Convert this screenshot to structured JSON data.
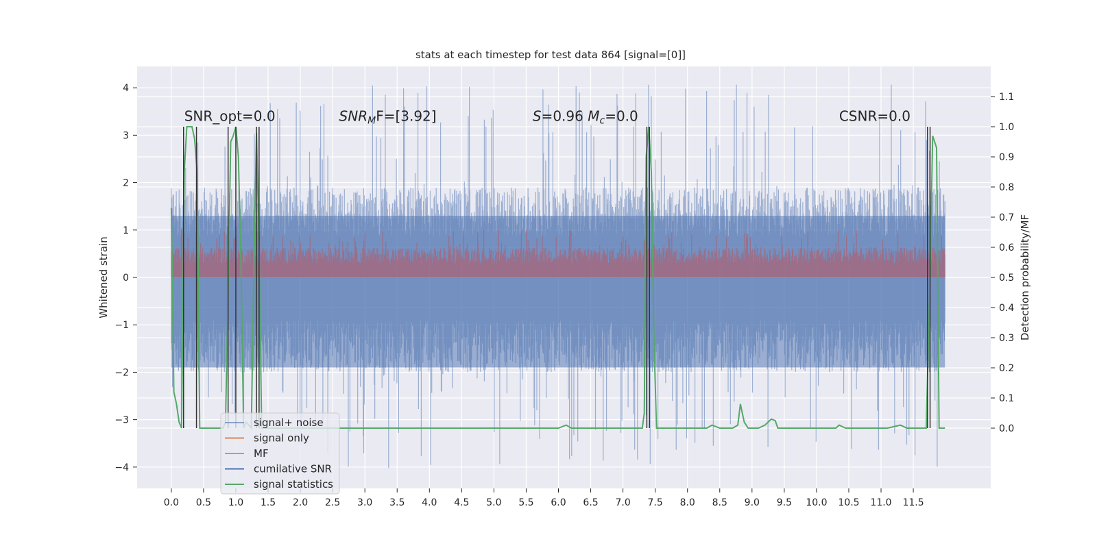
{
  "chart_data": {
    "type": "line",
    "title": "stats at each timestep for test data 864 [signal=[0]]",
    "xlabel": "",
    "ylabel": "Whitened strain",
    "y2label": "Detection probability/MF",
    "xlim": [
      -0.53,
      12.7
    ],
    "ylim": [
      -4.45,
      4.45
    ],
    "y2lim": [
      -0.2,
      1.2
    ],
    "xticks": [
      0.0,
      0.5,
      1.0,
      1.5,
      2.0,
      2.5,
      3.0,
      3.5,
      4.0,
      4.5,
      5.0,
      5.5,
      6.0,
      6.5,
      7.0,
      7.5,
      8.0,
      8.5,
      9.0,
      9.5,
      10.0,
      10.5,
      11.0,
      11.5
    ],
    "xtick_labels": [
      "0.0",
      "0.5",
      "1.0",
      "1.5",
      "2.0",
      "2.5",
      "3.0",
      "3.5",
      "4.0",
      "4.5",
      "5.0",
      "5.5",
      "6.0",
      "6.5",
      "7.0",
      "7.5",
      "8.0",
      "8.5",
      "9.0",
      "9.5",
      "10.0",
      "10.5",
      "11.0",
      "11.5"
    ],
    "yticks": [
      4,
      3,
      2,
      1,
      0,
      -1,
      -2,
      -3,
      -4
    ],
    "ytick_labels": [
      "4",
      "3",
      "2",
      "1",
      "0",
      "−1",
      "−2",
      "−3",
      "−4"
    ],
    "y2ticks": [
      1.1,
      1.0,
      0.9,
      0.8,
      0.7,
      0.6,
      0.5,
      0.4,
      0.3,
      0.2,
      0.1,
      0.0
    ],
    "y2tick_labels": [
      "1.1",
      "1.0",
      "0.9",
      "0.8",
      "0.7",
      "0.6",
      "0.5",
      "0.4",
      "0.3",
      "0.2",
      "0.1",
      "0.0"
    ],
    "grid": true,
    "legend_position": "lower-left",
    "annotations": [
      {
        "x": 0.2,
        "y": 3.3,
        "parts": [
          {
            "t": "SNR_opt=0.0",
            "it": false
          }
        ]
      },
      {
        "x": 2.6,
        "y": 3.3,
        "parts": [
          {
            "t": "SNR",
            "it": true
          },
          {
            "t": "M",
            "it": true,
            "sub": true
          },
          {
            "t": "F=[3.92]",
            "it": false
          }
        ]
      },
      {
        "x": 5.6,
        "y": 3.3,
        "parts": [
          {
            "t": "S",
            "it": true
          },
          {
            "t": "=0.96   ",
            "it": false
          },
          {
            "t": "M",
            "it": true
          },
          {
            "t": "c",
            "it": true,
            "sub": true
          },
          {
            "t": "=0.0",
            "it": false
          }
        ]
      },
      {
        "x": 10.35,
        "y": 3.3,
        "parts": [
          {
            "t": "CSNR=0.0",
            "it": false
          }
        ]
      }
    ],
    "series": [
      {
        "name": "signal+ noise",
        "axis": "left",
        "color": "#4c72b0",
        "alpha": 0.5,
        "noise_band": {
          "x_start": 0.0,
          "x_end": 11.99,
          "typical_low": -2.0,
          "typical_high": 1.9,
          "peak_low": -4.05,
          "peak_high": 4.1
        }
      },
      {
        "name": "signal only",
        "axis": "left",
        "color": "#dd8452",
        "values_constant": 0.0
      },
      {
        "name": "MF",
        "axis": "right",
        "color": "#c44e52",
        "alpha": 0.5,
        "noise_band": {
          "x_start": 0.0,
          "x_end": 11.99,
          "typical_low": 0.51,
          "typical_high": 0.6,
          "peak_low": 0.5,
          "peak_high": 0.66
        }
      },
      {
        "name": "cumilative SNR",
        "axis": "right",
        "color": "#4c72b0"
      },
      {
        "name": "signal statistics",
        "axis": "right",
        "color": "#55a868",
        "x": [
          0.0,
          0.04,
          0.08,
          0.12,
          0.16,
          0.2,
          0.24,
          0.28,
          0.32,
          0.36,
          0.4,
          0.44,
          0.48,
          0.52,
          0.8,
          0.84,
          0.88,
          0.92,
          0.96,
          1.0,
          1.04,
          1.08,
          1.12,
          1.16,
          1.2,
          1.24,
          1.28,
          1.32,
          1.36,
          1.4,
          1.44,
          1.48,
          6.0,
          6.12,
          6.2,
          6.4,
          6.6,
          7.0,
          7.3,
          7.33,
          7.36,
          7.4,
          7.44,
          7.48,
          7.52,
          7.6,
          8.0,
          8.3,
          8.38,
          8.5,
          8.7,
          8.78,
          8.82,
          8.88,
          8.94,
          9.1,
          9.2,
          9.3,
          9.36,
          9.4,
          9.46,
          9.8,
          10.3,
          10.35,
          10.45,
          10.8,
          10.9,
          11.0,
          11.1,
          11.3,
          11.4,
          11.7,
          11.76,
          11.8,
          11.86,
          11.9,
          11.99
        ],
        "values": [
          0.73,
          0.12,
          0.08,
          0.02,
          0.0,
          0.85,
          1.0,
          1.0,
          1.0,
          0.96,
          0.85,
          0.0,
          0.0,
          0.0,
          0.0,
          0.02,
          0.45,
          0.95,
          0.97,
          1.0,
          0.9,
          0.55,
          0.0,
          0.02,
          0.01,
          0.0,
          0.55,
          0.98,
          0.6,
          0.0,
          0.0,
          0.0,
          0.0,
          0.01,
          0.0,
          0.0,
          0.0,
          0.0,
          0.0,
          0.05,
          0.9,
          1.0,
          0.85,
          0.3,
          0.0,
          0.0,
          0.0,
          0.0,
          0.01,
          0.0,
          0.0,
          0.01,
          0.08,
          0.02,
          0.0,
          0.0,
          0.01,
          0.03,
          0.025,
          0.0,
          0.0,
          0.0,
          0.0,
          0.01,
          0.0,
          0.0,
          0.0,
          0.0,
          0.0,
          0.01,
          0.0,
          0.0,
          0.5,
          0.97,
          0.93,
          0.0,
          0.0
        ]
      }
    ],
    "black_vlines": {
      "axis": "right",
      "y_top": 1.0,
      "x": [
        0.19,
        0.39,
        0.88,
        1.0,
        1.32,
        1.36,
        7.37,
        7.41,
        11.72,
        11.76
      ]
    }
  }
}
